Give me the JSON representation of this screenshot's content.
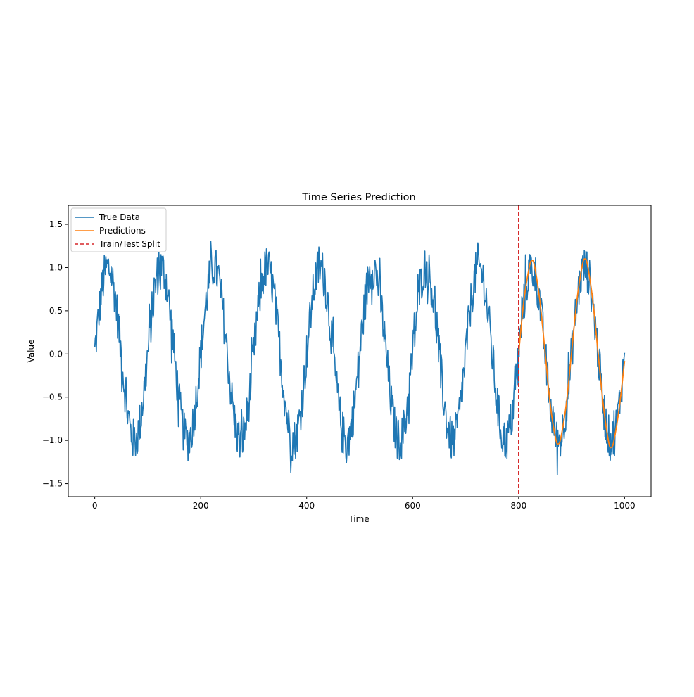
{
  "chart_data": {
    "type": "line",
    "title": "Time Series Prediction",
    "xlabel": "Time",
    "ylabel": "Value",
    "xlim": [
      -50,
      1050
    ],
    "ylim": [
      -1.65,
      1.72
    ],
    "xticks": [
      0,
      200,
      400,
      600,
      800,
      1000
    ],
    "xtick_labels": [
      "0",
      "200",
      "400",
      "600",
      "800",
      "1000"
    ],
    "yticks": [
      -1.5,
      -1.0,
      -0.5,
      0.0,
      0.5,
      1.0,
      1.5
    ],
    "ytick_labels": [
      "−1.5",
      "−1.0",
      "−0.5",
      "0.0",
      "0.5",
      "1.0",
      "1.5"
    ],
    "grid": false,
    "legend_position": "top-left",
    "series": [
      {
        "name": "True Data",
        "color": "#1f77b4",
        "style": "solid",
        "x_range": [
          0,
          1000
        ],
        "signal": "sin(2*pi*t/100) + noise",
        "period": 100,
        "amplitude": 1.0,
        "noise_amplitude": 0.25,
        "min": -1.49,
        "max": 1.58
      },
      {
        "name": "Predictions",
        "color": "#ff7f0e",
        "style": "solid",
        "x": [
          800,
          810,
          820,
          825,
          830,
          840,
          850,
          860,
          870,
          875,
          880,
          890,
          900,
          910,
          920,
          925,
          930,
          940,
          950,
          960,
          970,
          975,
          980,
          990,
          1000
        ],
        "y": [
          0.0,
          0.62,
          1.0,
          1.08,
          1.02,
          0.62,
          0.02,
          -0.6,
          -0.98,
          -1.04,
          -0.96,
          -0.58,
          0.02,
          0.62,
          1.02,
          1.1,
          1.03,
          0.62,
          0.01,
          -0.6,
          -1.02,
          -1.08,
          -1.0,
          -0.62,
          -0.08
        ]
      }
    ],
    "vlines": [
      {
        "name": "Train/Test Split",
        "x": 800,
        "color": "#d62728",
        "style": "dashed"
      }
    ]
  }
}
